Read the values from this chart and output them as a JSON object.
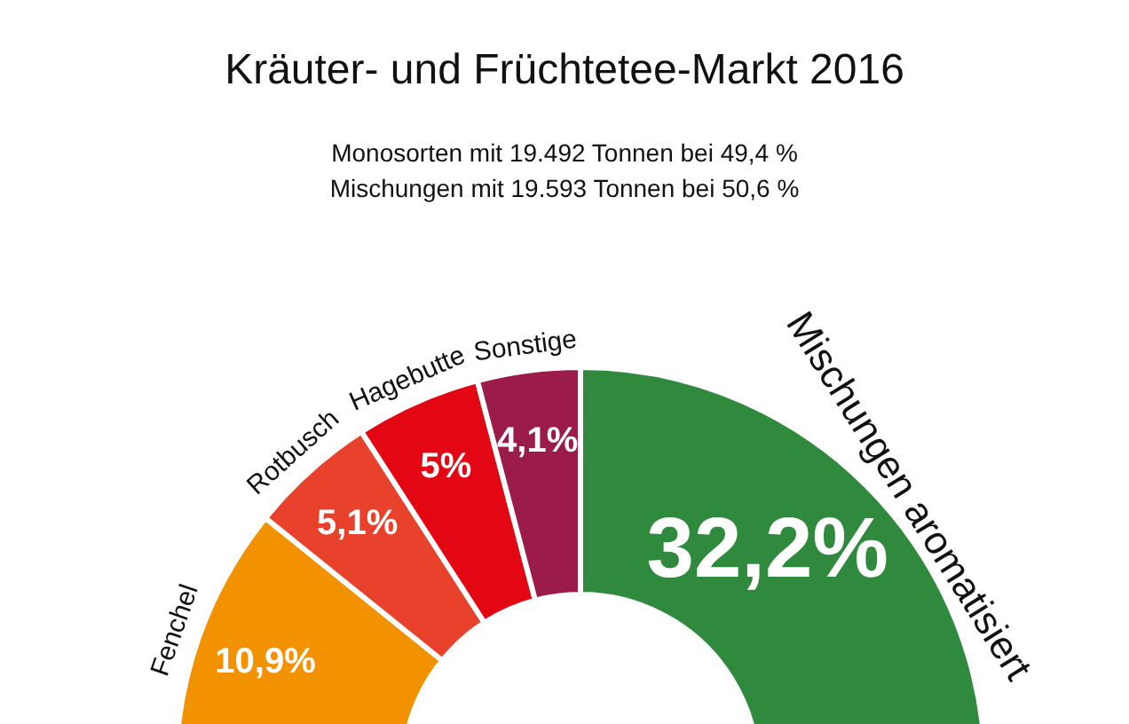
{
  "chart_data": {
    "type": "donut",
    "title": "Kräuter- und Früchtetee-Markt 2016",
    "subtitle": "Monosorten mit 19.492 Tonnen bei 49,4 %\nMischungen mit 19.593 Tonnen bei 50,6 %",
    "categories": [
      "Fenchel",
      "Rotbusch",
      "Hagebutte",
      "Sonstige",
      "Mischungen aromatisiert"
    ],
    "values": [
      10.9,
      5.1,
      5,
      4.1,
      32.2
    ],
    "value_labels": [
      "10,9%",
      "5,1%",
      "5%",
      "4,1%",
      "32,2%"
    ],
    "colors": [
      "#f39200",
      "#e8412c",
      "#e30613",
      "#9b1b4a",
      "#2f8a3e"
    ]
  }
}
